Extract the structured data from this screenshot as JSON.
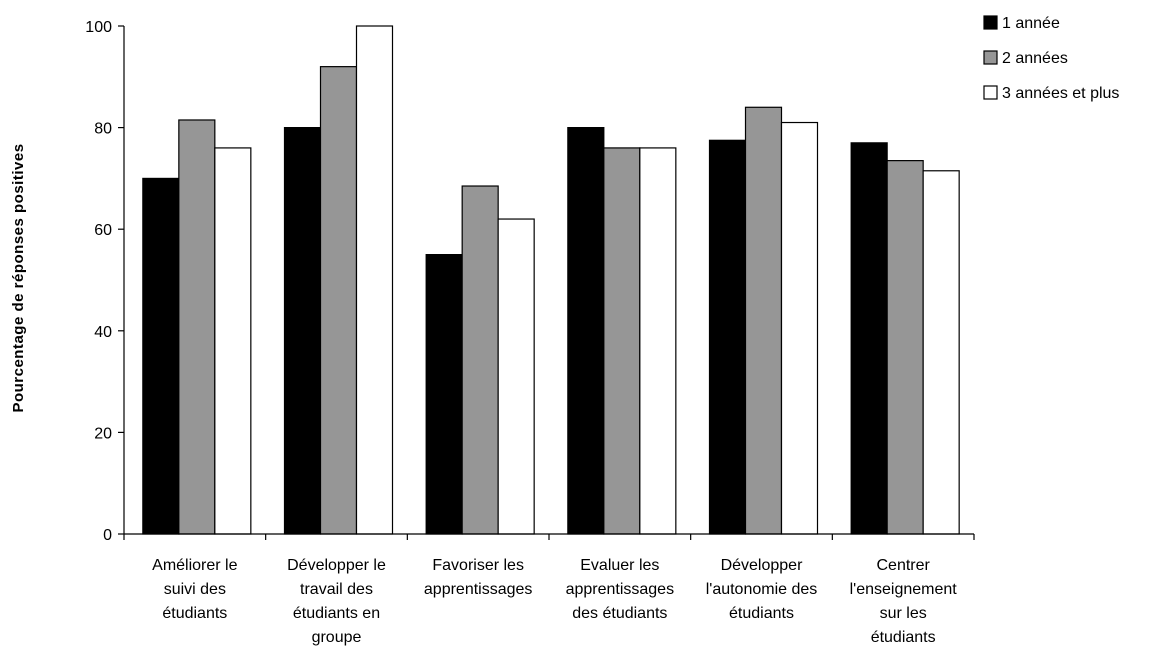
{
  "chart_data": {
    "type": "bar",
    "title": "",
    "xlabel": "",
    "ylabel": "Pourcentage de réponses positives",
    "ylim": [
      0,
      100
    ],
    "yticks": [
      0,
      20,
      40,
      60,
      80,
      100
    ],
    "grid": false,
    "legend_position": "top-right",
    "categories": [
      [
        "Améliorer le",
        "suivi des",
        "étudiants"
      ],
      [
        "Développer le",
        "travail des",
        "étudiants en",
        "groupe"
      ],
      [
        "Favoriser les",
        "apprentissages"
      ],
      [
        "Evaluer les",
        "apprentissages",
        "des étudiants"
      ],
      [
        "Développer",
        "l'autonomie des",
        "étudiants"
      ],
      [
        "Centrer",
        "l'enseignement",
        "sur les",
        "étudiants"
      ]
    ],
    "series": [
      {
        "name": "1 année",
        "color": "#000000",
        "values": [
          70,
          80,
          55,
          80,
          77.5,
          77
        ]
      },
      {
        "name": "2 années",
        "color": "#969696",
        "values": [
          81.5,
          92,
          68.5,
          76,
          84,
          73.5
        ]
      },
      {
        "name": "3 années et plus",
        "color": "#ffffff",
        "values": [
          76,
          100,
          62,
          76,
          81,
          71.5
        ]
      }
    ]
  }
}
